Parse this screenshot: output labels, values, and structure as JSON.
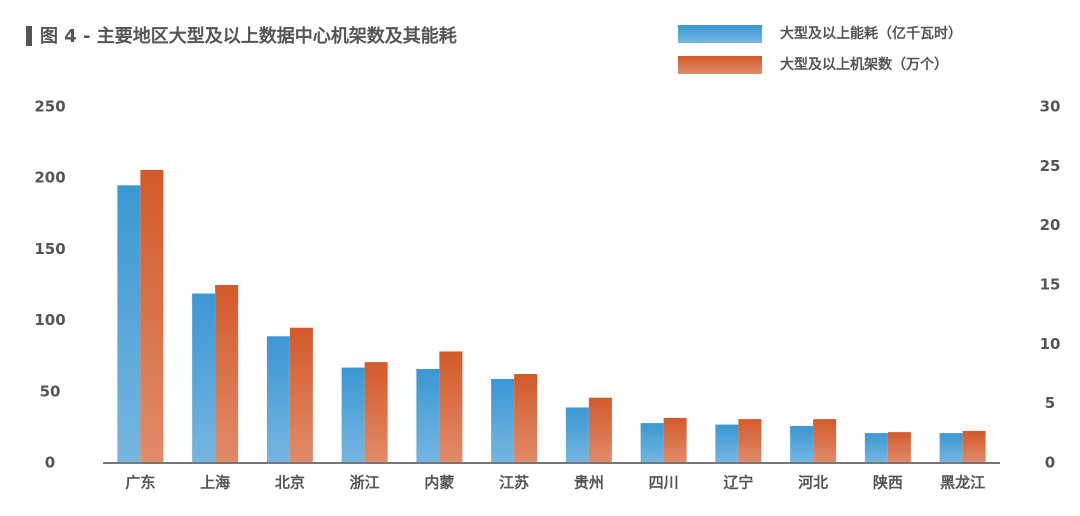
{
  "chart_data": {
    "type": "bar",
    "title": "图 4 - 主要地区大型及以上数据中心机架数及其能耗",
    "categories": [
      "广东",
      "上海",
      "北京",
      "浙江",
      "内蒙",
      "江苏",
      "贵州",
      "四川",
      "辽宁",
      "河北",
      "陕西",
      "黑龙江"
    ],
    "series": [
      {
        "name": "大型及以上能耗（亿千瓦时）",
        "color": "#3b97d3",
        "values": [
          195,
          119,
          89,
          67,
          66,
          59,
          39,
          28,
          27,
          26,
          21,
          21
        ]
      },
      {
        "name": "大型及以上机架数（万个）",
        "color": "#d35a2a",
        "axis": "y2",
        "values": [
          24.7,
          15.0,
          11.4,
          8.5,
          9.4,
          7.5,
          5.5,
          3.8,
          3.7,
          3.7,
          2.6,
          2.7
        ]
      }
    ],
    "ylim": [
      0,
      250
    ],
    "yticks": [
      0,
      50,
      100,
      150,
      200,
      250
    ],
    "y2lim": [
      0,
      30
    ],
    "y2ticks": [
      0,
      5,
      10,
      15,
      20,
      25,
      30
    ],
    "grid": false
  }
}
